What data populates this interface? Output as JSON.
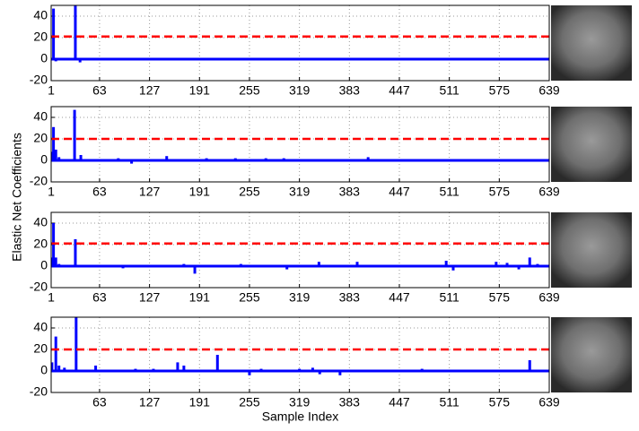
{
  "chart_data": [
    {
      "type": "stem",
      "xlim": [
        1,
        639
      ],
      "ylim": [
        -20,
        50
      ],
      "grid": true,
      "xticks": [
        1,
        63,
        127,
        191,
        255,
        319,
        383,
        447,
        511,
        575,
        639
      ],
      "yticks": [
        -20,
        0,
        20,
        40
      ],
      "hline": {
        "value": 21,
        "color": "#ff0000"
      },
      "series": [
        {
          "color": "#0000ff",
          "x": [
            4,
            7,
            32,
            38
          ],
          "values": [
            47,
            -2,
            55,
            -3
          ]
        }
      ]
    },
    {
      "type": "stem",
      "xlim": [
        1,
        639
      ],
      "ylim": [
        -20,
        50
      ],
      "grid": true,
      "ylabel": "Elastic Net Coefficients",
      "xticks": [
        1,
        63,
        127,
        191,
        255,
        319,
        383,
        447,
        511,
        575,
        639
      ],
      "yticks": [
        -20,
        0,
        20,
        40
      ],
      "hline": {
        "value": 20,
        "color": "#ff0000"
      },
      "series": [
        {
          "color": "#0000ff",
          "x": [
            2,
            4,
            7,
            11,
            31,
            39,
            87,
            104,
            149,
            200,
            237,
            276,
            299,
            407,
            562,
            625
          ],
          "values": [
            8,
            31,
            10,
            3,
            47,
            5,
            2,
            -3,
            4,
            2,
            2,
            2,
            2,
            3,
            1,
            -1
          ]
        }
      ]
    },
    {
      "type": "stem",
      "xlim": [
        1,
        639
      ],
      "ylim": [
        -20,
        50
      ],
      "grid": true,
      "xticks": [
        1,
        63,
        127,
        191,
        255,
        319,
        383,
        447,
        511,
        575,
        639
      ],
      "yticks": [
        -20,
        0,
        20,
        40
      ],
      "hline": {
        "value": 21,
        "color": "#ff0000"
      },
      "series": [
        {
          "color": "#0000ff",
          "x": [
            2,
            4,
            7,
            11,
            32,
            93,
            171,
            185,
            244,
            303,
            344,
            393,
            507,
            516,
            571,
            585,
            600,
            614,
            624
          ],
          "values": [
            8,
            40,
            8,
            2,
            25,
            -2,
            2,
            -7,
            2,
            -3,
            4,
            4,
            5,
            -4,
            4,
            3,
            -3,
            8,
            2
          ]
        }
      ]
    },
    {
      "type": "stem",
      "xlim": [
        1,
        639
      ],
      "ylim": [
        -20,
        50
      ],
      "grid": true,
      "xlabel": "Sample Index",
      "xticks": [
        63,
        127,
        191,
        255,
        319,
        383,
        447,
        511,
        575,
        639
      ],
      "yticks": [
        -20,
        0,
        20,
        40
      ],
      "hline": {
        "value": 20,
        "color": "#ff0000"
      },
      "series": [
        {
          "color": "#0000ff",
          "x": [
            2,
            7,
            11,
            18,
            33,
            58,
            109,
            132,
            163,
            171,
            214,
            255,
            270,
            319,
            336,
            345,
            371,
            476,
            568,
            614
          ],
          "values": [
            8,
            32,
            5,
            3,
            55,
            5,
            2,
            2,
            8,
            5,
            15,
            -4,
            2,
            2,
            3,
            -3,
            -4,
            2,
            -1,
            10
          ]
        }
      ]
    }
  ]
}
